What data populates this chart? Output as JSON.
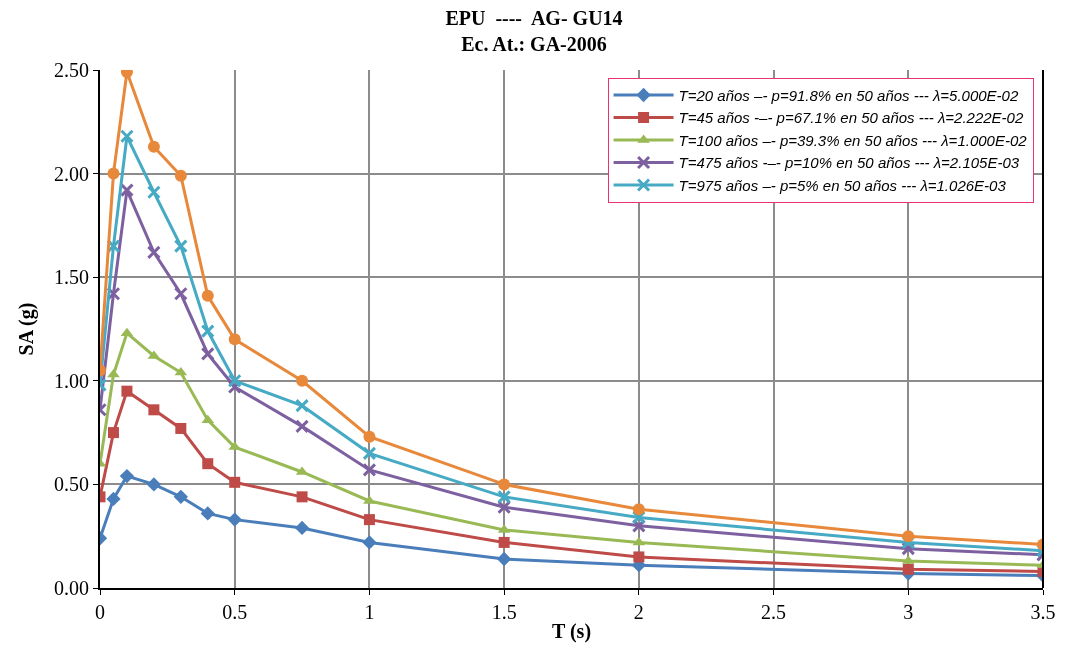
{
  "chart_data": {
    "type": "line",
    "title": "EPU  ----  AG- GU14\nEc. At.: GA-2006",
    "xlabel": "T (s)",
    "ylabel": "SA (g)",
    "x": [
      0,
      0.05,
      0.1,
      0.2,
      0.3,
      0.4,
      0.5,
      0.75,
      1,
      1.5,
      2,
      3,
      3.5
    ],
    "series": [
      {
        "name": "T=20 años –- p=91.8% en 50 años --- λ=5.000E-02",
        "color": "#4a7ebb",
        "marker": "diamond",
        "values": [
          0.24,
          0.43,
          0.54,
          0.5,
          0.44,
          0.36,
          0.33,
          0.29,
          0.22,
          0.14,
          0.11,
          0.07,
          0.06
        ]
      },
      {
        "name": "T=45 años -–- p=67.1% en 50 años --- λ=2.222E-02",
        "color": "#be4b48",
        "marker": "square",
        "values": [
          0.44,
          0.75,
          0.95,
          0.86,
          0.77,
          0.6,
          0.51,
          0.44,
          0.33,
          0.22,
          0.15,
          0.09,
          0.08
        ]
      },
      {
        "name": "T=100 años –- p=39.3% en 50 años --- λ=1.000E-02",
        "color": "#98b954",
        "marker": "triangle",
        "values": [
          0.6,
          1.03,
          1.23,
          1.12,
          1.04,
          0.81,
          0.68,
          0.56,
          0.42,
          0.28,
          0.22,
          0.13,
          0.11
        ]
      },
      {
        "name": "T=475 años -–- p=10% en 50 años --- λ=2.105E-03",
        "color": "#7d60a0",
        "marker": "cross",
        "values": [
          0.86,
          1.42,
          1.92,
          1.62,
          1.42,
          1.13,
          0.97,
          0.78,
          0.57,
          0.39,
          0.3,
          0.19,
          0.16
        ]
      },
      {
        "name": "T=975 años –- p=5% en 50 años --- λ=1.026E-03",
        "color": "#46aac5",
        "marker": "cross",
        "values": [
          0.98,
          1.65,
          2.18,
          1.91,
          1.65,
          1.24,
          1.0,
          0.88,
          0.65,
          0.44,
          0.34,
          0.22,
          0.18
        ]
      },
      {
        "color": "#e8883a",
        "marker": "circle",
        "values": [
          1.05,
          2.0,
          2.49,
          2.13,
          1.99,
          1.41,
          1.2,
          1.0,
          0.73,
          0.5,
          0.38,
          0.25,
          0.21
        ]
      }
    ],
    "xlim": [
      0,
      3.5
    ],
    "xticks": [
      0,
      0.5,
      1,
      1.5,
      2,
      2.5,
      3,
      3.5
    ],
    "ylim": [
      0,
      2.5
    ],
    "yticks": [
      {
        "value": 0,
        "label": "0.00"
      },
      {
        "value": 0.5,
        "label": "0.50"
      },
      {
        "value": 1,
        "label": "1.00"
      },
      {
        "value": 1.5,
        "label": "1.50"
      },
      {
        "value": 2,
        "label": "2.00"
      },
      {
        "value": 2.5,
        "label": "2.50"
      }
    ],
    "grid": true,
    "legend": "top right",
    "line_style": "solid"
  }
}
